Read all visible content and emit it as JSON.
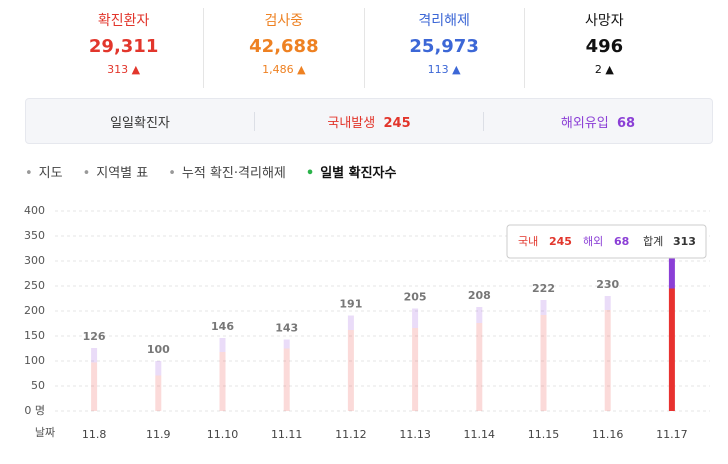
{
  "stats": [
    {
      "label": "확진환자",
      "value": "29,311",
      "change": "313",
      "color": "#e2362c"
    },
    {
      "label": "검사중",
      "value": "42,688",
      "change": "1,486",
      "color": "#ee8122"
    },
    {
      "label": "격리해제",
      "value": "25,973",
      "change": "113",
      "color": "#3c67d6"
    },
    {
      "label": "사망자",
      "value": "496",
      "change": "2",
      "color": "#111111"
    }
  ],
  "summary": {
    "title": "일일확진자",
    "domestic_label": "국내발생",
    "domestic": "245",
    "overseas_label": "해외유입",
    "overseas": "68"
  },
  "tabs": [
    "지도",
    "지역별 표",
    "누적 확진·격리해제",
    "일별 확진자수"
  ],
  "chart_data": {
    "type": "stacked-bar",
    "x_label": "날짜",
    "categories": [
      "11.8",
      "11.9",
      "11.10",
      "11.11",
      "11.12",
      "11.13",
      "11.14",
      "11.15",
      "11.16",
      "11.17"
    ],
    "series": [
      {
        "name": "국내",
        "color": "#e8322f",
        "values": [
          97,
          71,
          118,
          125,
          162,
          166,
          176,
          192,
          202,
          245
        ]
      },
      {
        "name": "해외",
        "color": "#8b3fd6",
        "values": [
          29,
          29,
          28,
          18,
          29,
          39,
          32,
          30,
          28,
          68
        ]
      }
    ],
    "totals": [
      126,
      100,
      146,
      143,
      191,
      205,
      208,
      222,
      230,
      313
    ],
    "total_label": "합계",
    "ylim": [
      0,
      400
    ],
    "yticks": [
      {
        "value": 0,
        "label": "0 명"
      },
      50,
      100,
      150,
      200,
      250,
      300,
      350,
      400
    ],
    "grid": true
  }
}
